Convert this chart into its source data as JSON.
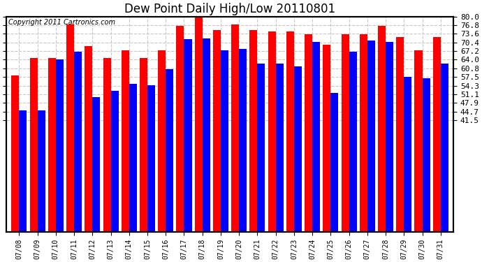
{
  "title": "Dew Point Daily High/Low 20110801",
  "copyright": "Copyright 2011 Cartronics.com",
  "dates": [
    "07/08",
    "07/09",
    "07/10",
    "07/11",
    "07/12",
    "07/13",
    "07/14",
    "07/15",
    "07/16",
    "07/17",
    "07/18",
    "07/19",
    "07/20",
    "07/21",
    "07/22",
    "07/23",
    "07/24",
    "07/25",
    "07/26",
    "07/27",
    "07/28",
    "07/29",
    "07/30",
    "07/31"
  ],
  "highs": [
    58.0,
    64.5,
    64.5,
    77.0,
    69.0,
    64.5,
    67.5,
    64.5,
    67.5,
    76.5,
    80.5,
    75.0,
    77.0,
    75.0,
    74.5,
    74.5,
    73.5,
    69.5,
    73.5,
    73.5,
    76.5,
    72.5,
    67.5,
    72.5
  ],
  "lows": [
    45.0,
    45.0,
    64.0,
    67.0,
    50.0,
    52.5,
    55.0,
    54.5,
    60.5,
    71.5,
    72.0,
    67.5,
    68.0,
    62.5,
    62.5,
    61.5,
    70.5,
    51.5,
    67.0,
    71.0,
    70.5,
    57.5,
    57.0,
    62.5
  ],
  "high_color": "#ff0000",
  "low_color": "#0000ff",
  "bg_color": "#ffffff",
  "plot_bg_color": "#ffffff",
  "grid_color": "#c8c8c8",
  "ymin": 41.5,
  "ymax": 80.0,
  "yticks": [
    41.5,
    44.7,
    47.9,
    51.1,
    54.3,
    57.5,
    60.8,
    64.0,
    67.2,
    70.4,
    73.6,
    76.8,
    80.0
  ],
  "bar_width": 0.42,
  "title_fontsize": 12,
  "tick_fontsize": 8,
  "copyright_fontsize": 7
}
